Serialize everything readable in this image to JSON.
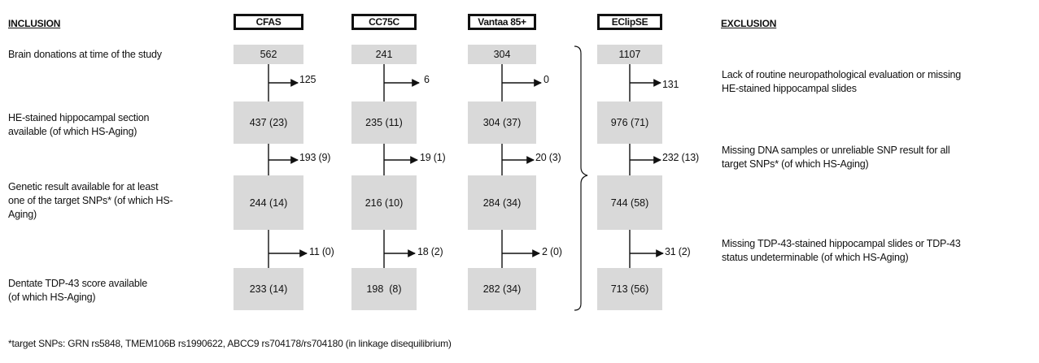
{
  "headers": {
    "inclusion": "INCLUSION",
    "exclusion": "EXCLUSION"
  },
  "cohorts": [
    {
      "name": "CFAS",
      "counts": [
        "562",
        "437 (23)",
        "244 (14)",
        "233 (14)"
      ],
      "excluded": [
        "125",
        "193 (9)",
        "11 (0)"
      ]
    },
    {
      "name": "CC75C",
      "counts": [
        "241",
        "235 (11)",
        "216 (10)",
        "198  (8)"
      ],
      "excluded": [
        "6",
        "19 (1)",
        "18 (2)"
      ]
    },
    {
      "name": "Vantaa 85+",
      "counts": [
        "304",
        "304 (37)",
        "284 (34)",
        "282 (34)"
      ],
      "excluded": [
        "0",
        "20 (3)",
        "2 (0)"
      ]
    },
    {
      "name": "EClipSE",
      "counts": [
        "1107",
        "976 (71)",
        "744 (58)",
        "713 (56)"
      ],
      "excluded": [
        "131",
        "232 (13)",
        "31 (2)"
      ]
    }
  ],
  "inclusion_steps": [
    [
      "Brain donations at time of the study"
    ],
    [
      "HE-stained hippocampal section",
      "available (of which HS-Aging)"
    ],
    [
      "Genetic result available for at least",
      "one of the target SNPs* (of which HS-",
      "Aging)"
    ],
    [
      "Dentate TDP-43 score available",
      "(of which HS-Aging)"
    ]
  ],
  "exclusion_reasons": [
    [
      "Lack of routine neuropathological evaluation or missing",
      "HE-stained hippocampal slides"
    ],
    [
      "Missing DNA samples or unreliable SNP result for all",
      "target SNPs* (of which HS-Aging)"
    ],
    [
      "Missing TDP-43-stained hippocampal slides or TDP-43",
      "status undeterminable (of which HS-Aging)"
    ]
  ],
  "footnote": "*target SNPs: GRN rs5848, TMEM106B rs1990622, ABCC9 rs704178/rs704180 (in linkage disequilibrium)"
}
